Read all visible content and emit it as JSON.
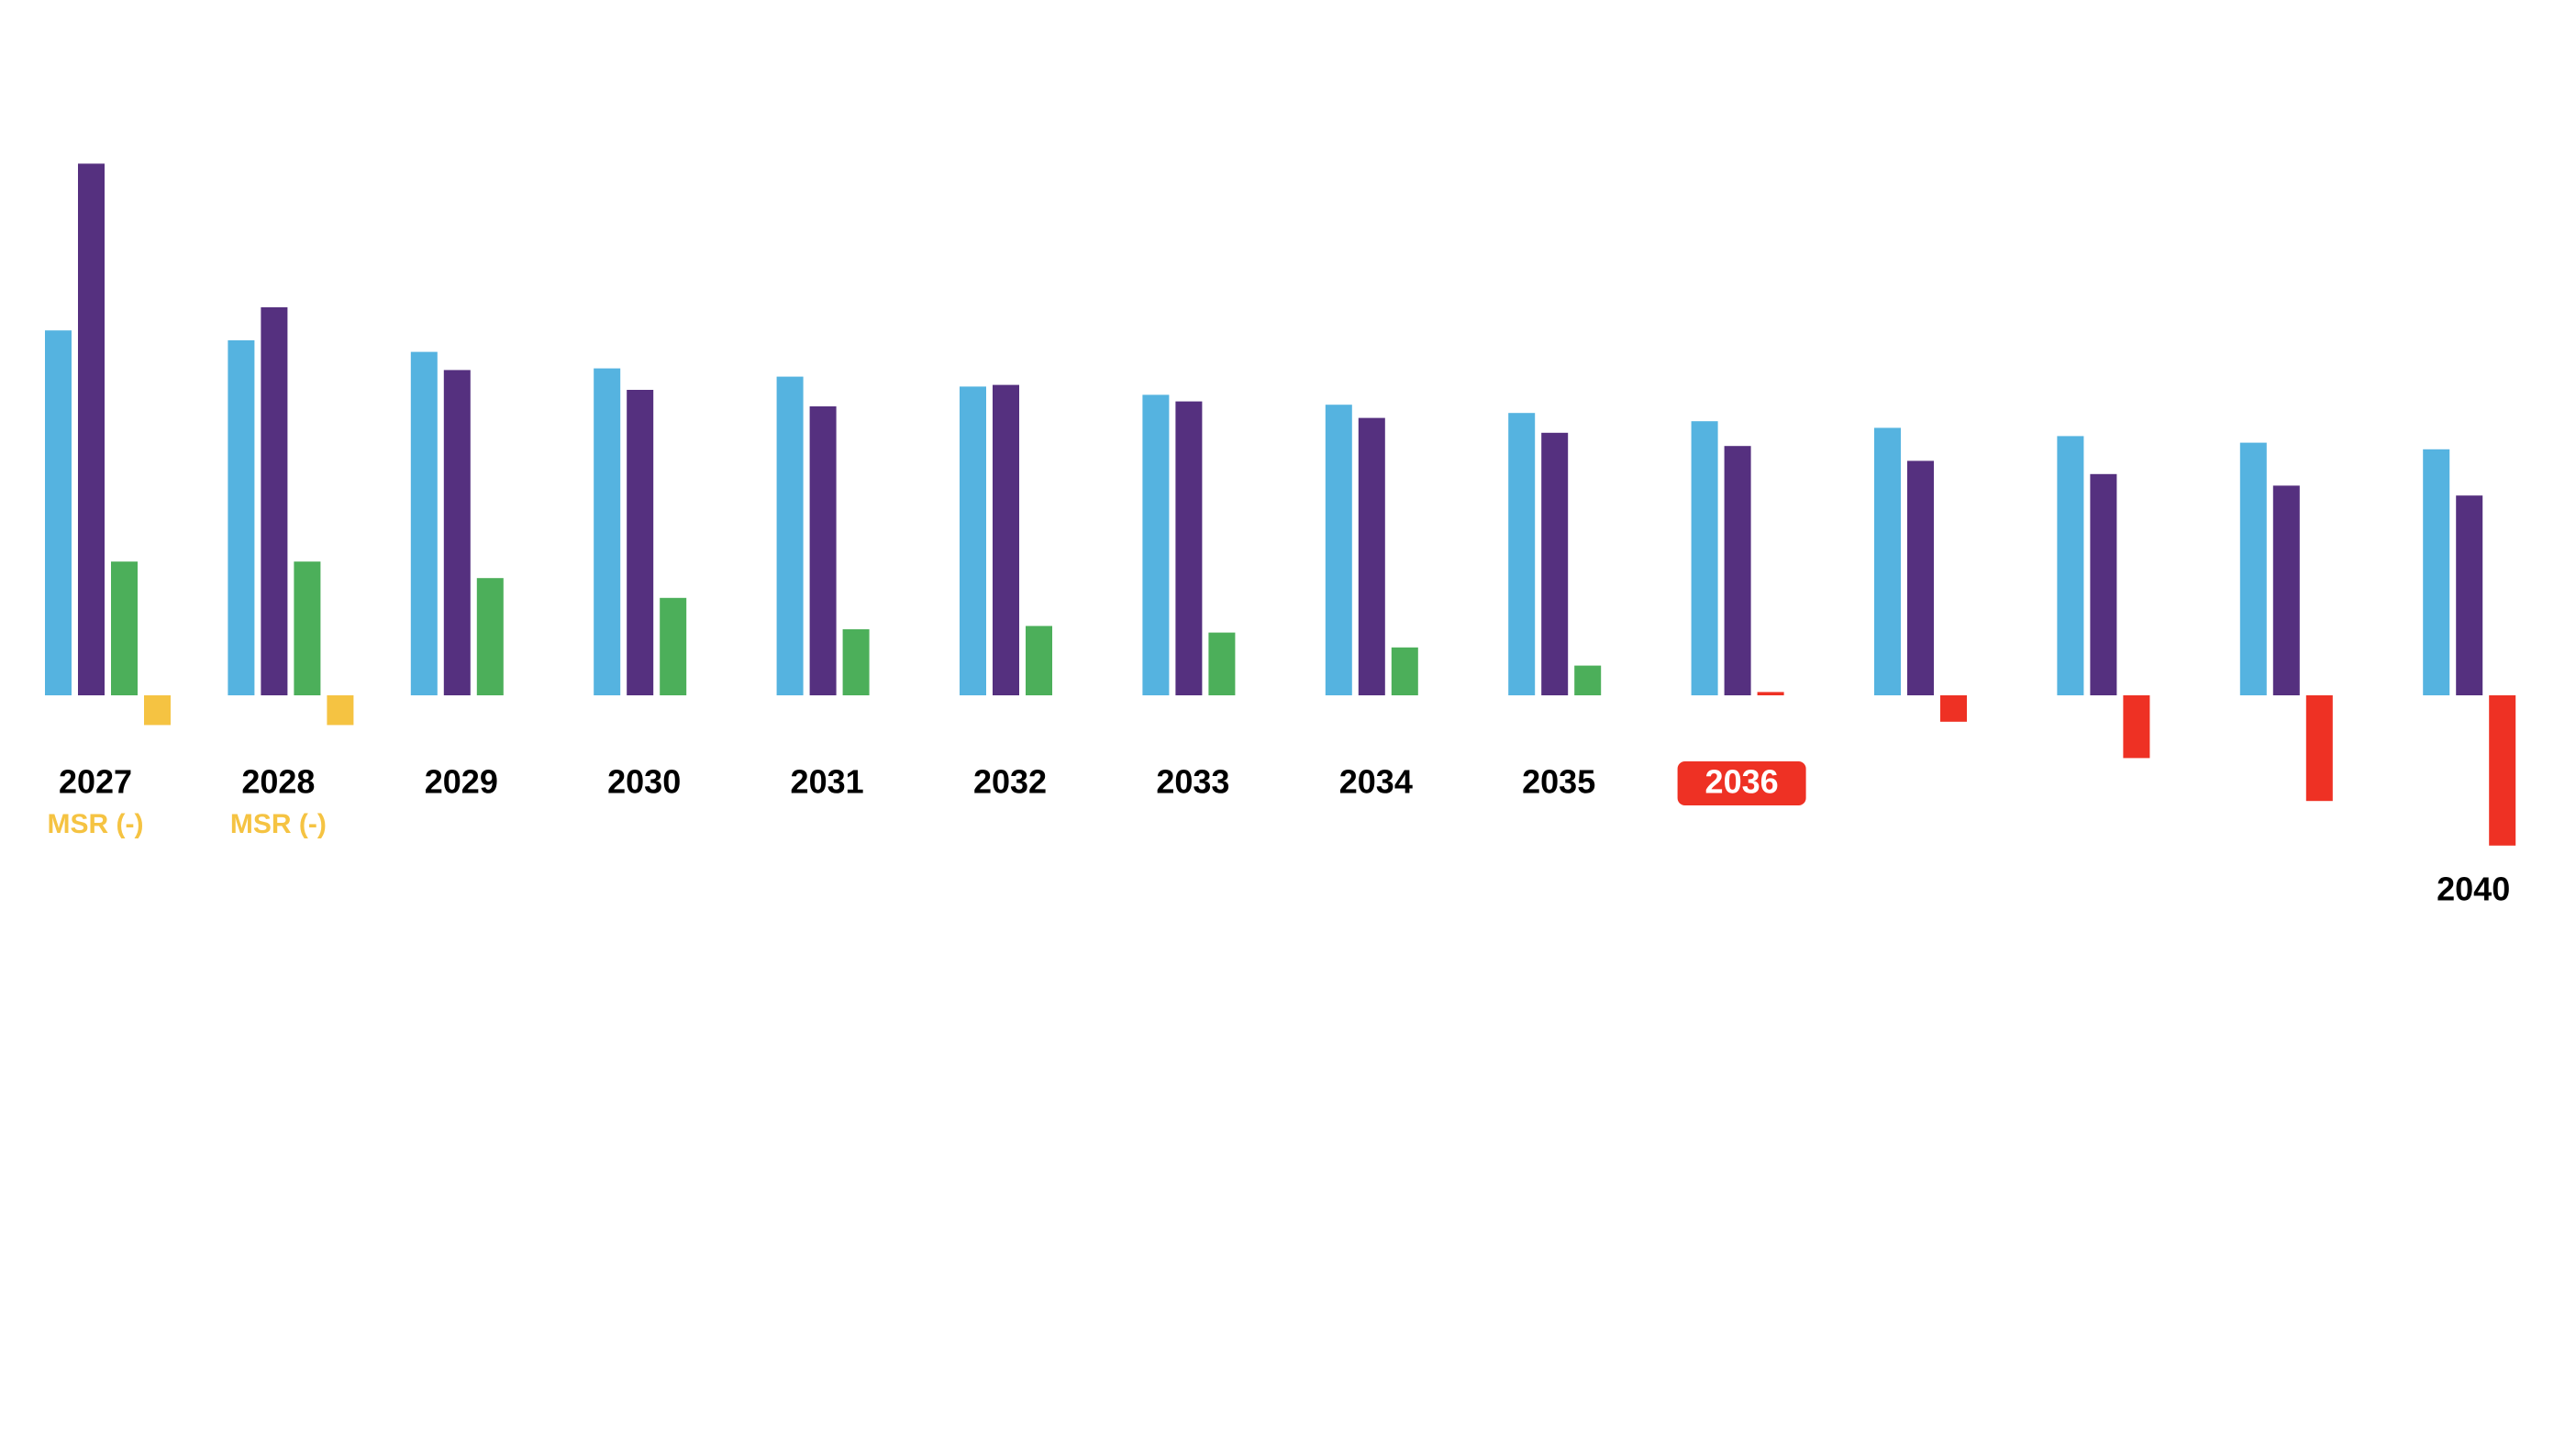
{
  "chart_data": {
    "type": "bar",
    "categories": [
      "2027",
      "2028",
      "2029",
      "2030",
      "2031",
      "2032",
      "2033",
      "2034",
      "2035",
      "2036",
      null,
      null,
      null,
      "2040"
    ],
    "series": [
      {
        "color": "#55b3e0",
        "values": [
          221,
          215,
          208,
          198,
          193,
          187,
          182,
          176,
          171,
          166,
          162,
          157,
          153,
          149
        ]
      },
      {
        "color": "#55307f",
        "values": [
          322,
          235,
          197,
          185,
          175,
          188,
          178,
          168,
          159,
          151,
          142,
          134,
          127,
          121
        ]
      },
      {
        "colors": [
          "#4caf5a",
          "#4caf5a",
          "#4caf5a",
          "#4caf5a",
          "#4caf5a",
          "#4caf5a",
          "#4caf5a",
          "#4caf5a",
          "#4caf5a",
          "#ee3124",
          "#ee3124",
          "#ee3124",
          "#ee3124",
          "#ee3124"
        ],
        "values": [
          81,
          81,
          71,
          59,
          40,
          42,
          38,
          29,
          18,
          2,
          -16,
          -38,
          -64,
          -91
        ]
      },
      {
        "color": "#f5c342",
        "values": [
          -18,
          -18,
          null,
          null,
          null,
          null,
          null,
          null,
          null,
          null,
          null,
          null,
          null,
          null
        ]
      }
    ],
    "ylim": [
      -100,
      340
    ],
    "label_color": "#000000",
    "highlight_category_index": 9,
    "highlight_color": "#ee3124",
    "annotations": [
      {
        "category_index": 0,
        "text": "MSR (-)",
        "color": "#f5c342"
      },
      {
        "category_index": 1,
        "text": "MSR (-)",
        "color": "#f5c342"
      }
    ]
  }
}
